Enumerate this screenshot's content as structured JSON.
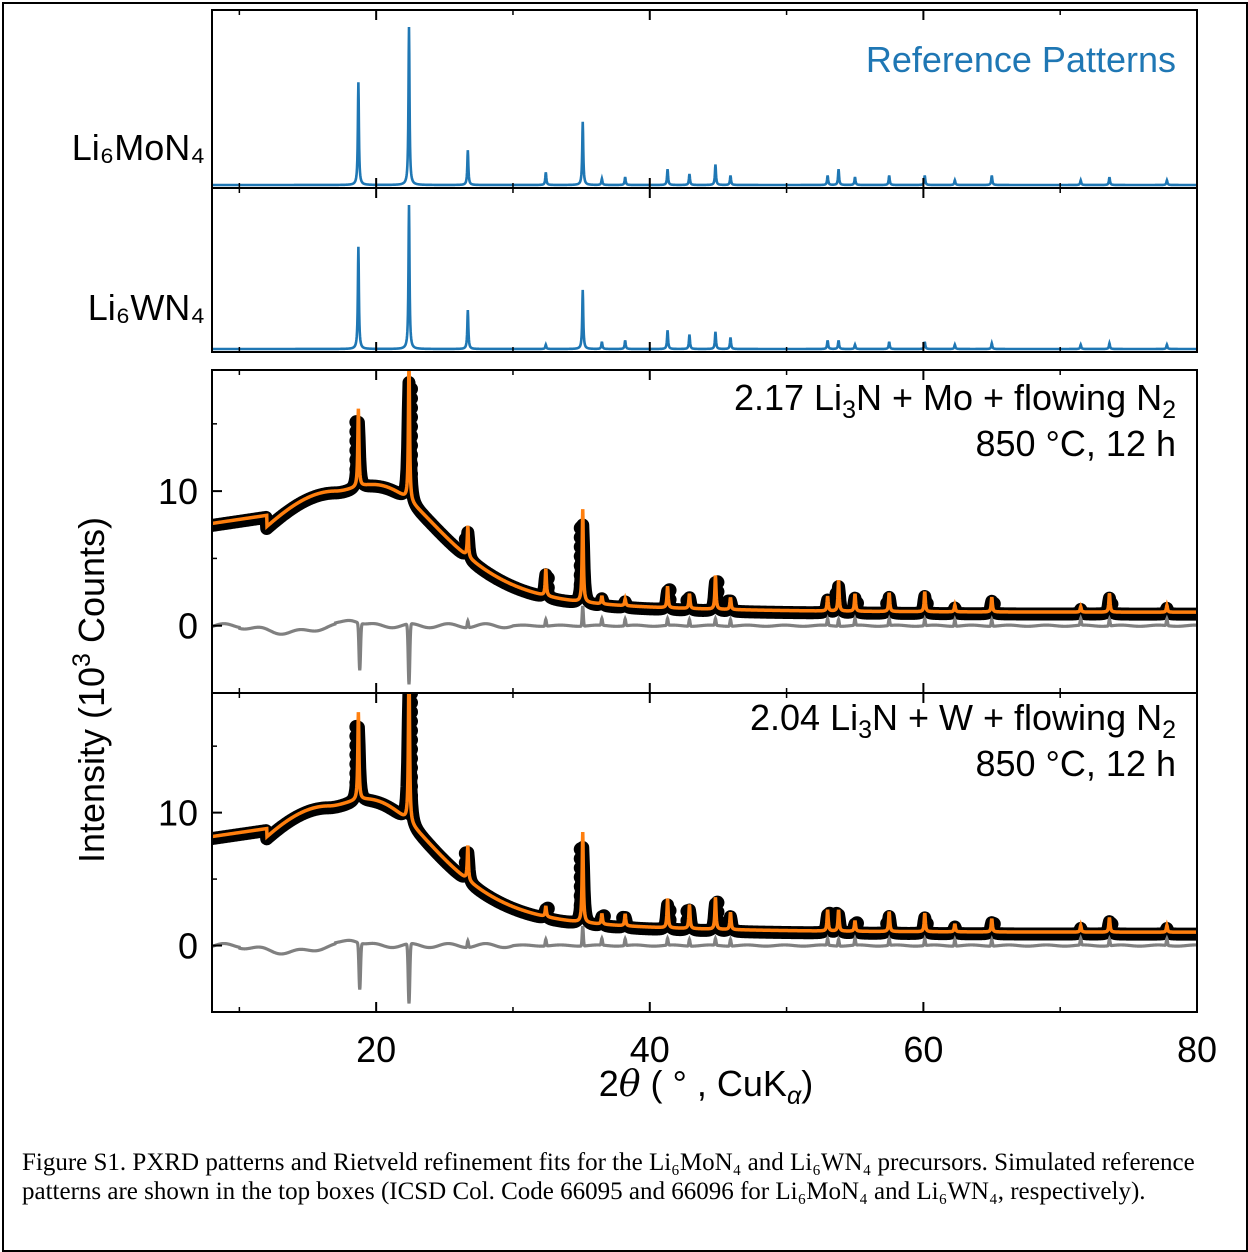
{
  "chart_data": [
    {
      "type": "line",
      "panel": "Li6MoN4 reference",
      "label": "Li₆MoN₄",
      "annotation": "Reference Patterns",
      "xlim": [
        8,
        80
      ],
      "peaks_x": [
        18.7,
        22.4,
        26.7,
        32.4,
        35.1,
        36.5,
        38.2,
        41.3,
        42.9,
        44.8,
        45.9,
        53.0,
        53.8,
        55.0,
        57.5,
        60.1,
        62.3,
        65.0,
        71.5,
        73.6,
        77.8
      ],
      "peaks_y": [
        0.65,
        1.0,
        0.22,
        0.08,
        0.4,
        0.04,
        0.05,
        0.1,
        0.07,
        0.13,
        0.06,
        0.06,
        0.1,
        0.05,
        0.06,
        0.06,
        0.03,
        0.06,
        0.03,
        0.05,
        0.03
      ],
      "series": [
        {
          "color": "#1f77b4"
        }
      ]
    },
    {
      "type": "line",
      "panel": "Li6WN4 reference",
      "label": "Li₆WN₄",
      "xlim": [
        8,
        80
      ],
      "peaks_x": [
        18.7,
        22.4,
        26.7,
        32.4,
        35.1,
        36.5,
        38.2,
        41.3,
        42.9,
        44.8,
        45.9,
        53.0,
        53.8,
        55.0,
        57.5,
        60.1,
        62.3,
        65.0,
        71.5,
        73.6,
        77.8
      ],
      "peaks_y": [
        0.71,
        1.0,
        0.27,
        0.03,
        0.41,
        0.05,
        0.06,
        0.13,
        0.1,
        0.12,
        0.08,
        0.06,
        0.06,
        0.03,
        0.05,
        0.05,
        0.03,
        0.04,
        0.03,
        0.04,
        0.03
      ],
      "series": [
        {
          "color": "#1f77b4"
        }
      ]
    },
    {
      "type": "line",
      "panel": "Mo sample",
      "annotation_line1": {
        "pre": "2.17 Li",
        "sub1": "3",
        "mid": "N + Mo + flowing N",
        "sub2": "2"
      },
      "annotation_line2": "850 °C, 12 h",
      "xlim": [
        8,
        80
      ],
      "ylim": [
        -5,
        19
      ],
      "yticks": [
        0,
        10
      ],
      "background": {
        "hump_height": 10.0,
        "hump_center": 17.0,
        "floor": 1.0,
        "start": 7.6
      },
      "peaks_x": [
        18.7,
        22.4,
        26.7,
        32.4,
        35.1,
        36.5,
        38.2,
        41.3,
        42.9,
        44.8,
        45.9,
        53.0,
        53.8,
        55.0,
        57.5,
        60.1,
        62.3,
        65.0,
        71.5,
        73.6,
        77.8
      ],
      "peaks_y": [
        5.8,
        10.5,
        2.3,
        2.0,
        6.9,
        0.6,
        0.5,
        1.6,
        1.1,
        2.5,
        0.9,
        1.1,
        2.3,
        1.3,
        1.4,
        1.5,
        0.5,
        1.1,
        0.4,
        1.4,
        0.5
      ],
      "series": [
        {
          "role": "observed",
          "color": "#000000"
        },
        {
          "role": "calculated",
          "color": "#ff7f0e"
        },
        {
          "role": "difference",
          "color": "#808080"
        }
      ]
    },
    {
      "type": "line",
      "panel": "W sample",
      "annotation_line1": {
        "pre": "2.04 Li",
        "sub1": "3",
        "mid": "N + W + flowing N",
        "sub2": "2"
      },
      "annotation_line2": "850 °C, 12 h",
      "xlim": [
        8,
        80
      ],
      "ylim": [
        -5,
        19
      ],
      "yticks": [
        0,
        10
      ],
      "background": {
        "hump_height": 10.5,
        "hump_center": 16.5,
        "floor": 1.0,
        "start": 8.2
      },
      "peaks_x": [
        18.7,
        22.4,
        26.7,
        32.4,
        35.1,
        36.5,
        38.2,
        41.3,
        42.9,
        44.8,
        45.9,
        53.0,
        53.8,
        55.0,
        57.5,
        60.1,
        62.3,
        65.0,
        71.5,
        73.6,
        77.8
      ],
      "peaks_y": [
        6.6,
        12.0,
        2.6,
        0.8,
        6.8,
        0.8,
        0.9,
        2.2,
        1.8,
        2.4,
        1.3,
        1.6,
        1.6,
        0.8,
        1.5,
        1.4,
        0.6,
        1.0,
        0.5,
        1.1,
        0.5
      ],
      "series": [
        {
          "role": "observed",
          "color": "#000000"
        },
        {
          "role": "calculated",
          "color": "#ff7f0e"
        },
        {
          "role": "difference",
          "color": "#808080"
        }
      ]
    }
  ],
  "axes": {
    "ylabel": {
      "pre": "Intensity (10",
      "sup": "3",
      "post": " Counts)"
    },
    "xlabel": {
      "theta_pre": "2",
      "theta": "θ",
      "mid": " ( ° , CuK",
      "sub": "α",
      "post": ")"
    },
    "xticks": [
      20,
      40,
      60,
      80
    ]
  },
  "caption": {
    "text": "Figure S1. PXRD patterns and Rietveld refinement fits for the Li₆MoN₄ and Li₆WN₄ precursors. Simulated reference patterns are shown in the top boxes (ICSD Col. Code 66095 and 66096 for Li₆MoN₄ and Li₆WN₄, respectively)."
  }
}
